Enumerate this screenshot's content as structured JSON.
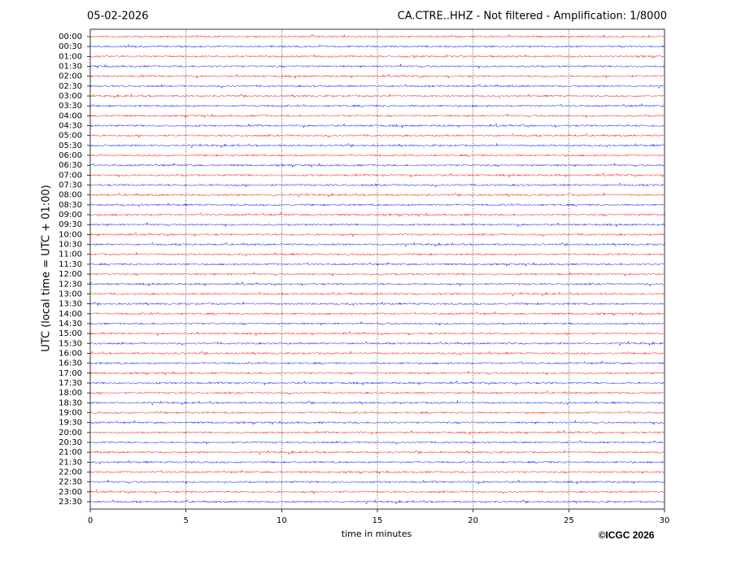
{
  "chart_data": {
    "type": "helicorder",
    "date": "05-02-2026",
    "title": "CA.CTRE..HHZ - Not filtered - Amplification: 1/8000",
    "xlabel": "time in minutes",
    "ylabel": "UTC (local time = UTC + 01:00)",
    "copyright": "©ICGC 2026",
    "categories": [
      "00:00",
      "00:30",
      "01:00",
      "01:30",
      "02:00",
      "02:30",
      "03:00",
      "03:30",
      "04:00",
      "04:30",
      "05:00",
      "05:30",
      "06:00",
      "06:30",
      "07:00",
      "07:30",
      "08:00",
      "08:30",
      "09:00",
      "09:30",
      "10:00",
      "10:30",
      "11:00",
      "11:30",
      "12:00",
      "12:30",
      "13:00",
      "13:30",
      "14:00",
      "14:30",
      "15:00",
      "15:30",
      "16:00",
      "16:30",
      "17:00",
      "17:30",
      "18:00",
      "18:30",
      "19:00",
      "19:30",
      "20:00",
      "20:30",
      "21:00",
      "21:30",
      "22:00",
      "22:30",
      "23:00",
      "23:30"
    ],
    "colors": [
      "#ff0000",
      "#0000ff"
    ],
    "xlim": [
      0,
      30
    ],
    "xticks": [
      0,
      5,
      10,
      15,
      20,
      25,
      30
    ],
    "grid": true
  }
}
